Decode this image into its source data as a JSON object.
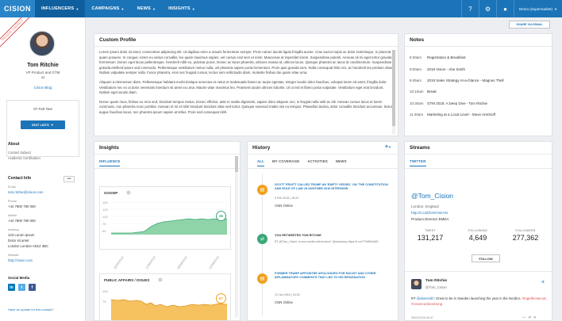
{
  "nav": {
    "logo": "CISION",
    "tabs": [
      {
        "label": "INFLUENCERS"
      },
      {
        "label": "CAMPAIGNS"
      },
      {
        "label": "NEWS"
      },
      {
        "label": "INSIGHTS"
      }
    ],
    "user": "Demo (Supermarket)"
  },
  "share_button": "SHARE VIA EMAIL",
  "profile": {
    "ribbon": "PRIVATE CONTACT",
    "name": "Tom Ritchie",
    "role_line1": "VP Product and GTM",
    "role_line2": "at",
    "blog": "Cision Blog",
    "list_label": "07 Feb Test",
    "edit_lists": "EDIT LISTS",
    "about_title": "About",
    "about_lines": [
      "Contact Subject",
      "Academic Certification"
    ],
    "contact_title": "Contact Info",
    "email_label": "Email",
    "email": "tom.ritchie@cision.com",
    "phone_label": "Phone",
    "phone": "+44 7900 790 000",
    "mobile_label": "Mobile",
    "mobile": "+44 7900 790 000",
    "address_label": "Address",
    "address_lines": [
      "123 Lorum Ipsum",
      "Dolor sit amet",
      "London London  AD12 3BC"
    ],
    "website_label": "Website",
    "website": "http://cision.com",
    "social_title": "Social Media",
    "footer_text": "Have an update for this contact?"
  },
  "custom_profile": {
    "title": "Custom Profile",
    "paragraphs": [
      "Lorem ipsum dolor sit amet, consectetur adipiscing elit. Ut dapibus enim a mauris fermentum semper. Proin rutrum iaculis ligula fringilla auctor. Cras auctor turpis ac dolor scelerisque, in placerat quam posuere. In congue, lorem eu varius convallis, leo quam maximus sapien, vel cursus erat sem et enim. Maecenas at imperdiet lorem. Suspendisse potenti. Aenean sit mi eget tortor gravida fermentum. Donec eget lacus pellentesque, hendrerit nibh eu, pulvinar purus. Donec ac lacus pharetra, ultricies massa id, ultrices lacus. Quisque pharetra ac lacus id condimentum. Suspendisse gravida eleifend ipsum sed commodo. Pellentesque vestibulum metus nulla, vel pharetra sapien porta fermentum. Proin quis gravida sem. Nulla consequat felis orci, ac hendrerit leo pretium vitae. Nullam vulputate semper nulla. Fusce pharetra, eros nec feugiat cursus, lectus sem sollicitudin diam, molestie finibus dui quam vitae urna.",
      "Aliquam a elementum diam. Pellentesque habitant morbi tristique senectus et netus et malesuada fames ac turpis egestas. Integer iaculis dolor faucibus, volutpat lorem sit amet, fringilla dolor. Vestibulum nec ex ut dolor venenatis interdum sit amet eu urna. Mauris vitae maximus leo. Praesent iaculis ultrices lobortis. Ut ut nisl et libero porta vulputate. Vestibulum eget erat tincidunt. Nullam eget iaculis diam.",
      "Donec quam risus, finibus eu eros sed, tincidunt tempus metus. Donec efficitur, ante in mattis dignissim, sapien dolor aliquam orci, in feugiat nulla velit ac elit. Aenean cursus lacus et lorem commodo, non pharetra nunc porttitor. Aenean et mi et nibh tincidunt tincidunt vitae sed tortor. Quisque euismod mattis nisi eu tempus. Phasellus lacinia, dolor convallis tincidunt accumsan, lectus augue faucibus lacus, nec pharetra ipsum sapien at tellus. Proin sed consequat nibh."
    ]
  },
  "notes": {
    "title": "Notes",
    "items": [
      {
        "time": "8:30am",
        "text": "Registration & Breakfast"
      },
      {
        "time": "9:00am",
        "text": "2018 Vision - Abe Smith"
      },
      {
        "time": "9:45am",
        "text": "2018 Sales Strategy At-a-Glance - Magnus Thell"
      },
      {
        "time": "10:15am",
        "text": "Break"
      },
      {
        "time": "10:30am",
        "text": "GTM 2018: A Deep Dive - Tom Ritchie"
      },
      {
        "time": "11:45am",
        "text": "Marketing at a Local Level - Steve Arenhoff"
      }
    ]
  },
  "insights": {
    "title": "Insights",
    "tab": "INFLUENCE",
    "gossip": {
      "title": "GOSSIP",
      "score": "45",
      "color": "#3aa876"
    },
    "public_affairs": {
      "title": "PUBLIC AFFAIRS / ISSUES",
      "score": "67",
      "color": "#f0a11d"
    },
    "dates": [
      "15/05/2016",
      "12/06/2016",
      "09/09/2016",
      "13/09/2016"
    ],
    "gossip_yaxis": [
      "150",
      "125",
      "100",
      "75",
      "50",
      "25"
    ],
    "pa_yaxis": [
      "100",
      "75"
    ]
  },
  "history": {
    "title": "History",
    "plus": "+",
    "tabs": [
      "ALL",
      "MY COVERAGE",
      "ACTIVITIES",
      "NEWS"
    ],
    "items": [
      {
        "title": "SCOTT PRUITT CALLED TRUMP AN 'EMPTY VESSEL' ON 'THE CONSTITUTION AND RULE OF LAW' IN ANOTHER 2016 INTERVIEW",
        "date": "9 Feb 2018  |  16:20",
        "source": "CNN Online"
      },
      {
        "title": "YOU RETWEETED TOM RITCHIE",
        "date": "RT @Tom_Cision: A new media referendum? @cisionexp https://t.co/YTbl3bNa5D",
        "source": ""
      },
      {
        "title": "FORMER TRUMP APPOINTEE APOLOGIZES FOR RACIST AND OTHER INFLAMMATORY COMMENTS THAT LED TO HIS RESIGNATION",
        "date": "19 Jan 2018  |  16:20",
        "source": "CNN Online"
      }
    ]
  },
  "streams": {
    "title": "Streams",
    "tab": "TWITTER",
    "handle": "@Tom_Cision",
    "location": "London, England",
    "link": "http://t.co/fZVKF3mYN",
    "position": "Product Director EMEA",
    "stats": [
      {
        "label": "TWEET",
        "value": "131,217"
      },
      {
        "label": "FOLLOWING",
        "value": "4,649"
      },
      {
        "label": "FOLLOWERS",
        "value": "277,362"
      }
    ],
    "follow": "FOLLOW",
    "tweet": {
      "name": "Tom Ritchie",
      "handle": "@Tom_Cision",
      "rt": "RT",
      "mention": "@abesmith",
      "body": ": Great to be in Sweden launching the year in the Nordics.",
      "hashtags": "#togetherwecan #cisionnordicsstrong",
      "date": "08/02/2018 06:47"
    }
  }
}
